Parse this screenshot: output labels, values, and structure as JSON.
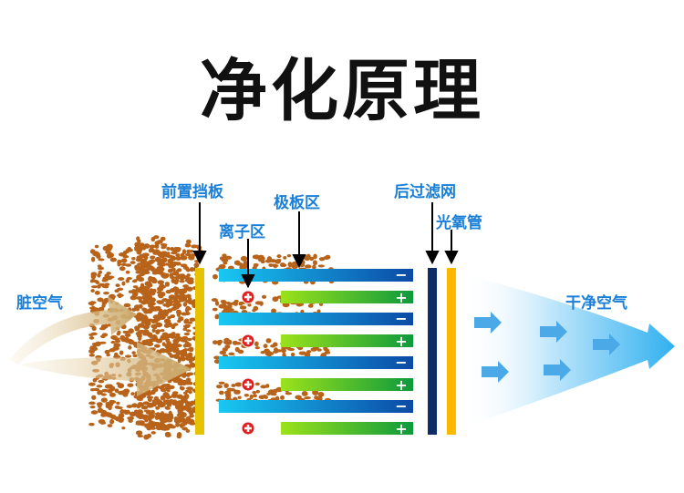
{
  "title": "净化原理",
  "labels": {
    "front_baffle": "前置挡板",
    "plate_zone": "极板区",
    "ion_zone": "离子区",
    "rear_filter": "后过滤网",
    "uv_tube": "光氧管",
    "dirty_air": "脏空气",
    "clean_air": "干净空气"
  },
  "plate_signs": {
    "negative": "−",
    "positive": "+"
  },
  "colors": {
    "label": "#1a7fd8",
    "front_baffle": "#e6c200",
    "negative_plate_start": "#18c8f2",
    "negative_plate_end": "#0b4aa6",
    "positive_plate_start": "#9be21a",
    "positive_plate_end": "#0e9a3c",
    "rear_filter": "#0e2d66",
    "uv_tube": "#ffb800",
    "ion": "#e02020",
    "particles": "#b8631a"
  }
}
